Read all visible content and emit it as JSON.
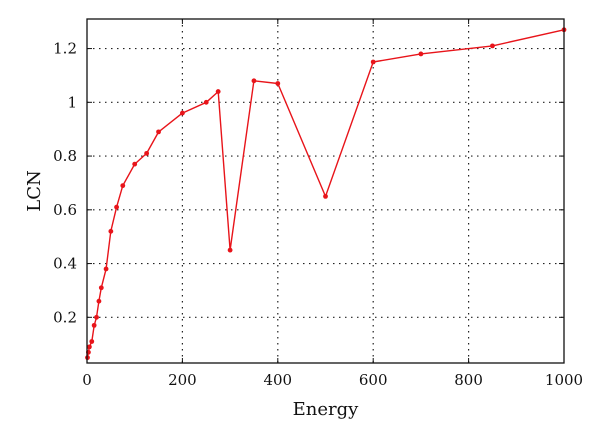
{
  "chart_data": {
    "type": "line",
    "title": "",
    "xlabel": "Energy",
    "ylabel": "LCN",
    "xlim": [
      0,
      1000
    ],
    "ylim": [
      0.03,
      1.31
    ],
    "grid": true,
    "grid_style": "dotted",
    "x_ticks": [
      0,
      200,
      400,
      600,
      800,
      1000
    ],
    "y_ticks": [
      0.2,
      0.4,
      0.6,
      0.8,
      1,
      1.2
    ],
    "colors": {
      "series": "#e8141a",
      "axis": "#111111",
      "grid": "#222222"
    },
    "series": [
      {
        "x": [
          1,
          3,
          5,
          10,
          15,
          20,
          25,
          30,
          40,
          50,
          62,
          75,
          100,
          125,
          150,
          200,
          250,
          275,
          300,
          350,
          400,
          500,
          600,
          700,
          850,
          1000
        ],
        "y": [
          0.05,
          0.07,
          0.09,
          0.11,
          0.17,
          0.2,
          0.26,
          0.31,
          0.38,
          0.52,
          0.61,
          0.69,
          0.77,
          0.81,
          0.89,
          0.96,
          1.0,
          1.04,
          0.45,
          1.08,
          1.07,
          0.65,
          1.15,
          1.18,
          1.21,
          1.27
        ]
      }
    ]
  }
}
